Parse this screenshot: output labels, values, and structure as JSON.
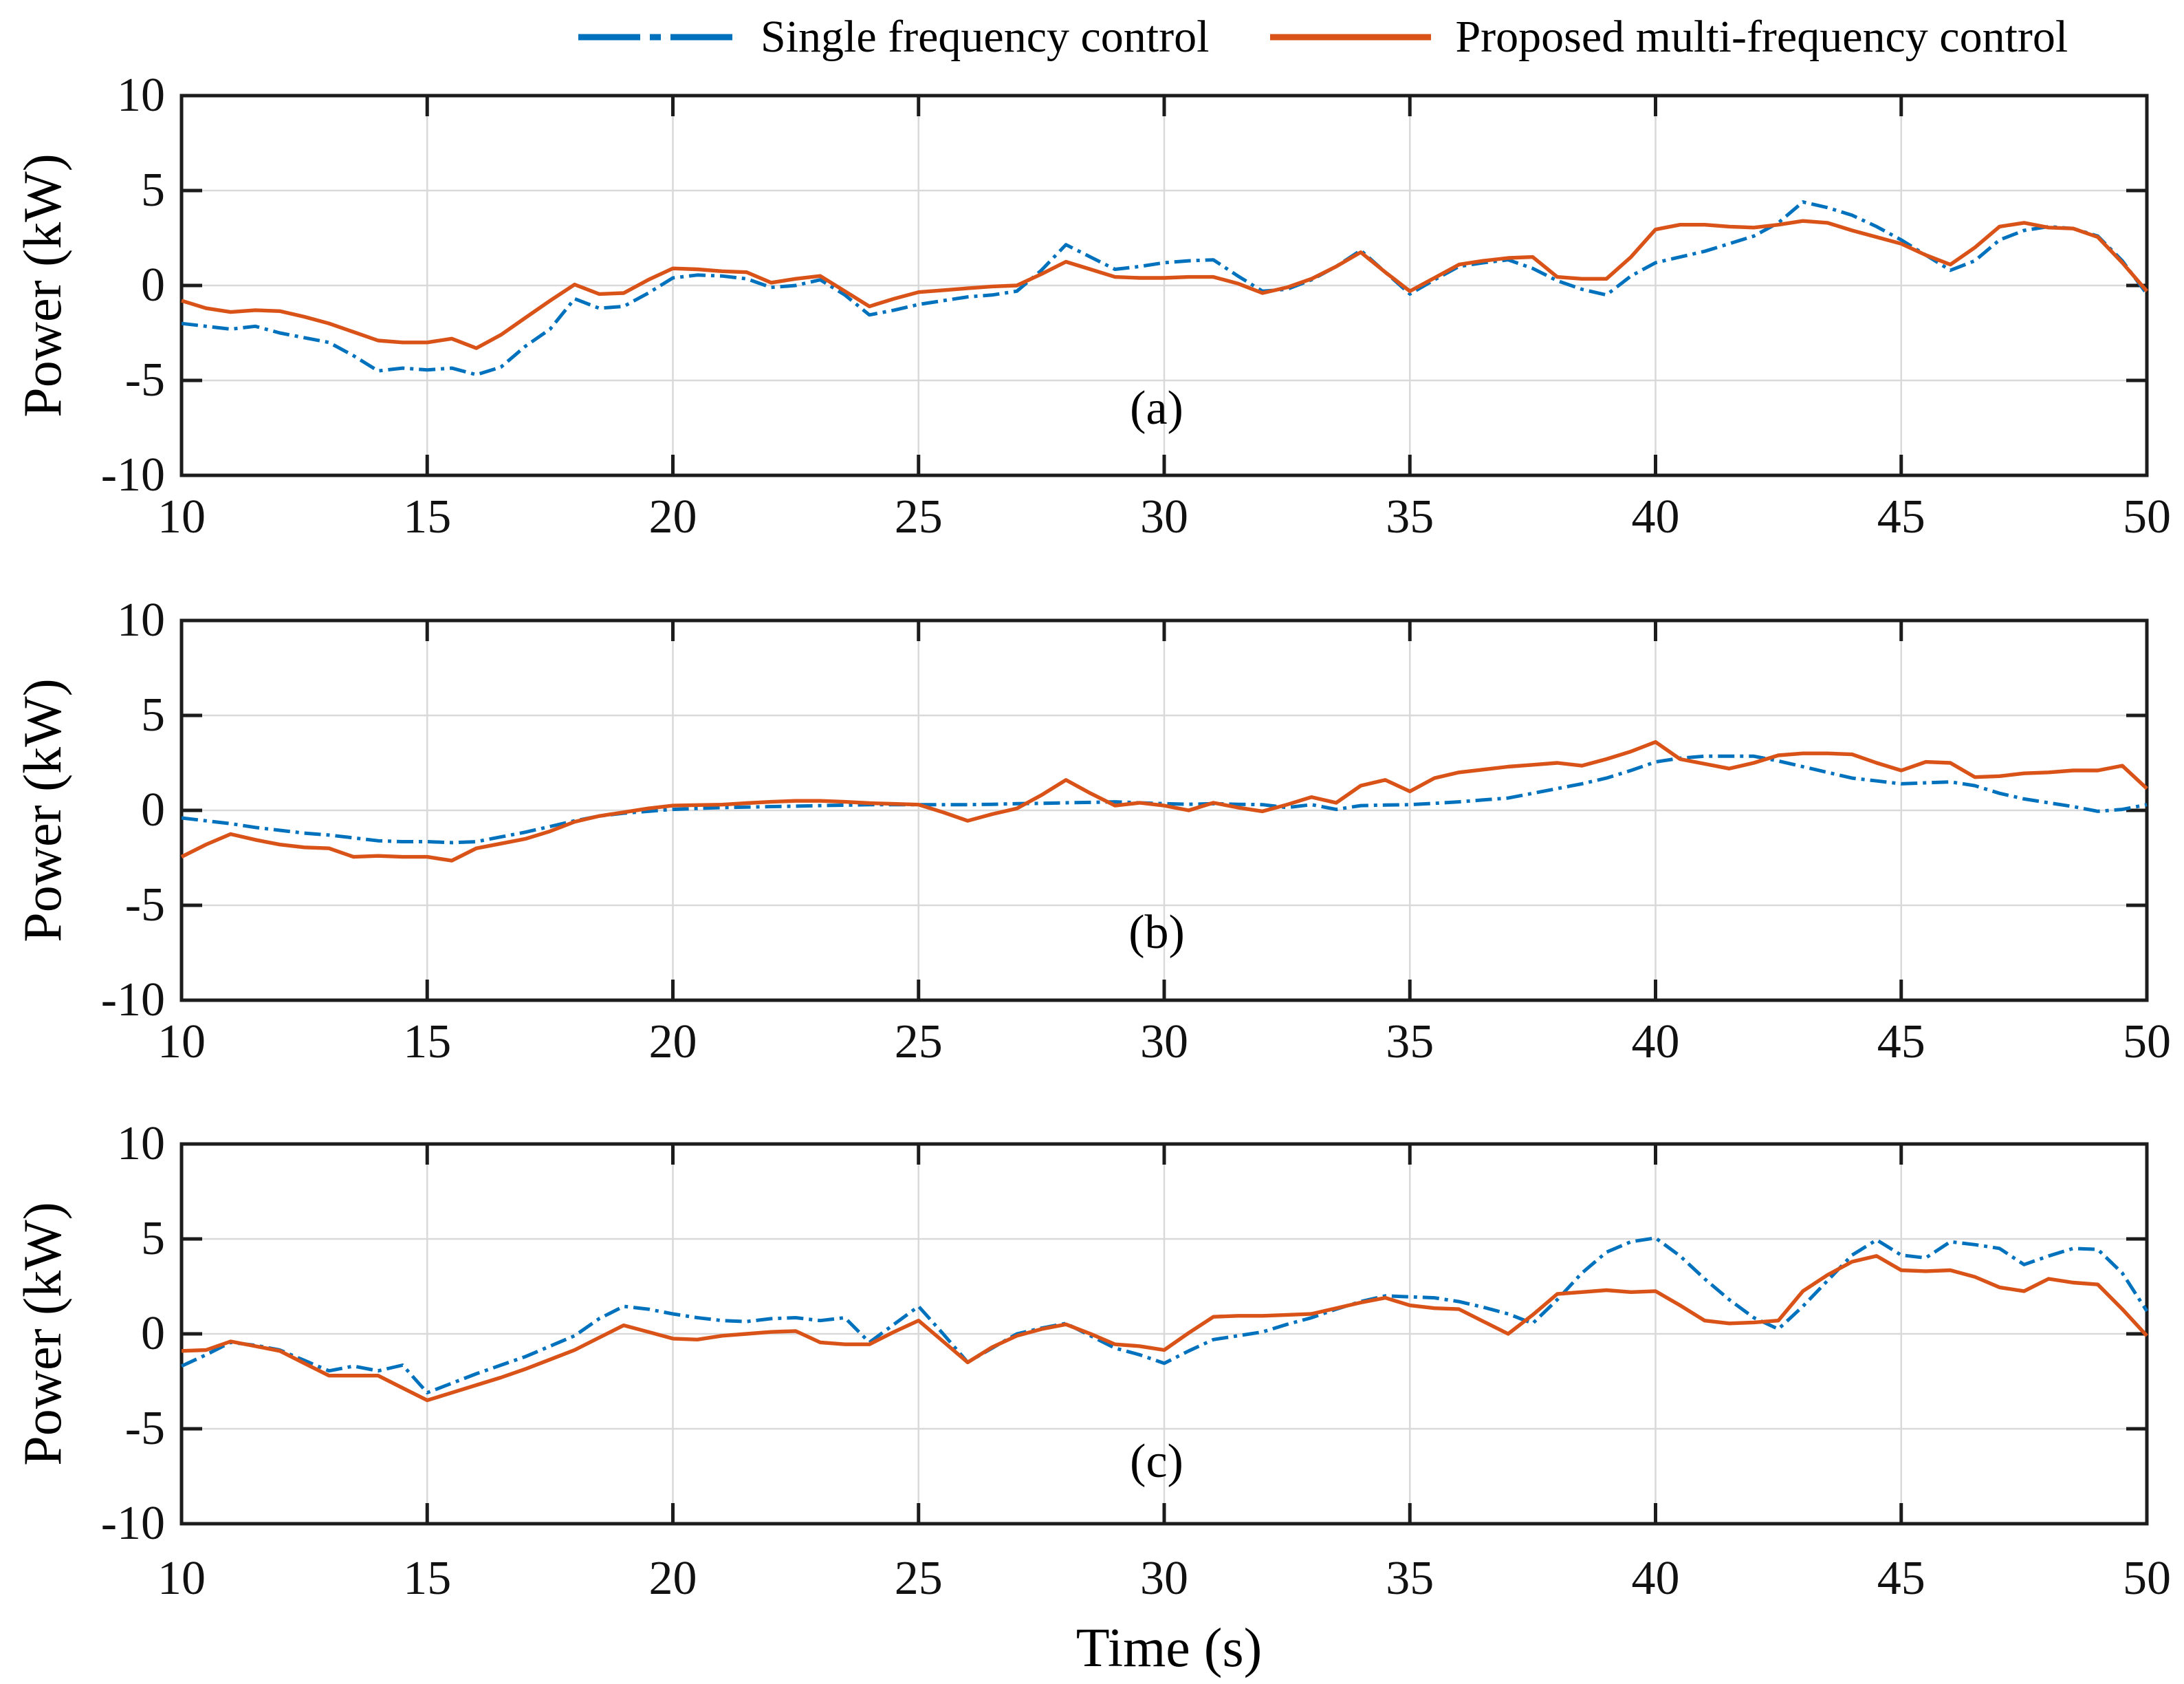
{
  "figure": {
    "background": "#ffffff"
  },
  "legend": {
    "position": "top",
    "items": [
      {
        "label": "Single frequency control",
        "color": "#0072BD",
        "line_style": "dash-dot"
      },
      {
        "label": "Proposed multi-frequency control",
        "color": "#D95319",
        "line_style": "solid"
      }
    ]
  },
  "axes": {
    "x_label": "Time (s)",
    "y_label": "Power (kW)",
    "x_range": [
      10,
      50
    ],
    "y_range": [
      -10,
      10
    ],
    "x_ticks": [
      10,
      15,
      20,
      25,
      30,
      35,
      40,
      45,
      50
    ],
    "y_ticks": [
      10,
      5,
      0,
      -5,
      -10
    ],
    "y_tick_labels": [
      "10",
      "5",
      "0",
      "-5",
      "-10"
    ],
    "grid": true,
    "grid_color": "#d9d9d9",
    "frame_color": "#1c1c1c"
  },
  "chart_data": {
    "type": "line",
    "title": "",
    "xlabel": "Time (s)",
    "ylabel": "Power (kW)",
    "xlim": [
      10,
      50
    ],
    "ylim": [
      -10,
      10
    ],
    "legend_position": "top",
    "grid": true,
    "x": [
      10,
      10.5,
      11,
      11.5,
      12,
      12.5,
      13,
      13.5,
      14,
      14.5,
      15,
      15.5,
      16,
      16.5,
      17,
      17.5,
      18,
      18.5,
      19,
      19.5,
      20,
      20.5,
      21,
      21.5,
      22,
      22.5,
      23,
      23.5,
      24,
      24.5,
      25,
      25.5,
      26,
      26.5,
      27,
      27.5,
      28,
      28.5,
      29,
      29.5,
      30,
      30.5,
      31,
      31.5,
      32,
      32.5,
      33,
      33.5,
      34,
      34.5,
      35,
      35.5,
      36,
      36.5,
      37,
      37.5,
      38,
      38.5,
      39,
      39.5,
      40,
      40.5,
      41,
      41.5,
      42,
      42.5,
      43,
      43.5,
      44,
      44.5,
      45,
      45.5,
      46,
      46.5,
      47,
      47.5,
      48,
      48.5,
      49,
      49.5,
      50
    ],
    "subplots": [
      {
        "label": "(a)",
        "series": [
          {
            "name": "Single frequency control",
            "color": "#0072BD",
            "style": "dash-dot",
            "values": [
              -2.0,
              -2.15,
              -2.3,
              -2.15,
              -2.5,
              -2.75,
              -3.0,
              -3.7,
              -4.5,
              -4.35,
              -4.45,
              -4.35,
              -4.7,
              -4.3,
              -3.2,
              -2.3,
              -0.7,
              -1.2,
              -1.1,
              -0.4,
              0.4,
              0.55,
              0.5,
              0.35,
              -0.1,
              0.0,
              0.3,
              -0.5,
              -1.55,
              -1.3,
              -1.0,
              -0.8,
              -0.6,
              -0.5,
              -0.3,
              0.8,
              2.15,
              1.5,
              0.85,
              1.0,
              1.2,
              1.3,
              1.35,
              0.5,
              -0.3,
              -0.2,
              0.3,
              1.0,
              1.85,
              0.7,
              -0.45,
              0.3,
              1.0,
              1.2,
              1.35,
              0.9,
              0.25,
              -0.2,
              -0.5,
              0.5,
              1.2,
              1.5,
              1.8,
              2.2,
              2.6,
              3.3,
              4.4,
              4.1,
              3.7,
              3.1,
              2.4,
              1.6,
              0.8,
              1.3,
              2.4,
              2.9,
              3.1,
              3.0,
              2.6,
              1.3,
              -0.45
            ]
          },
          {
            "name": "Proposed multi-frequency control",
            "color": "#D95319",
            "style": "solid",
            "values": [
              -0.8,
              -1.2,
              -1.4,
              -1.3,
              -1.35,
              -1.65,
              -2.0,
              -2.45,
              -2.9,
              -3.0,
              -3.0,
              -2.8,
              -3.3,
              -2.6,
              -1.7,
              -0.8,
              0.05,
              -0.45,
              -0.4,
              0.3,
              0.9,
              0.85,
              0.75,
              0.7,
              0.15,
              0.35,
              0.5,
              -0.3,
              -1.1,
              -0.7,
              -0.35,
              -0.25,
              -0.15,
              -0.05,
              0.0,
              0.6,
              1.25,
              0.85,
              0.45,
              0.4,
              0.4,
              0.45,
              0.45,
              0.1,
              -0.4,
              -0.1,
              0.35,
              1.0,
              1.75,
              0.7,
              -0.3,
              0.4,
              1.1,
              1.3,
              1.45,
              1.5,
              0.45,
              0.35,
              0.35,
              1.5,
              2.95,
              3.2,
              3.2,
              3.1,
              3.05,
              3.2,
              3.4,
              3.3,
              2.9,
              2.55,
              2.2,
              1.6,
              1.1,
              2.0,
              3.1,
              3.3,
              3.05,
              3.0,
              2.55,
              1.2,
              -0.3
            ]
          }
        ]
      },
      {
        "label": "(b)",
        "series": [
          {
            "name": "Single frequency control",
            "color": "#0072BD",
            "style": "dash-dot",
            "values": [
              -0.4,
              -0.55,
              -0.7,
              -0.9,
              -1.05,
              -1.2,
              -1.3,
              -1.45,
              -1.6,
              -1.65,
              -1.65,
              -1.7,
              -1.65,
              -1.4,
              -1.15,
              -0.85,
              -0.55,
              -0.3,
              -0.15,
              -0.05,
              0.05,
              0.1,
              0.15,
              0.17,
              0.2,
              0.22,
              0.25,
              0.27,
              0.3,
              0.3,
              0.3,
              0.3,
              0.3,
              0.32,
              0.35,
              0.37,
              0.4,
              0.42,
              0.45,
              0.4,
              0.35,
              0.32,
              0.35,
              0.32,
              0.3,
              0.15,
              0.3,
              0.05,
              0.25,
              0.28,
              0.3,
              0.37,
              0.45,
              0.55,
              0.65,
              0.9,
              1.15,
              1.4,
              1.7,
              2.1,
              2.55,
              2.75,
              2.85,
              2.85,
              2.85,
              2.6,
              2.3,
              2.0,
              1.7,
              1.55,
              1.4,
              1.45,
              1.5,
              1.3,
              0.9,
              0.6,
              0.4,
              0.2,
              -0.05,
              0.05,
              0.3
            ]
          },
          {
            "name": "Proposed multi-frequency control",
            "color": "#D95319",
            "style": "solid",
            "values": [
              -2.45,
              -1.8,
              -1.25,
              -1.55,
              -1.8,
              -1.95,
              -2.0,
              -2.45,
              -2.4,
              -2.45,
              -2.45,
              -2.65,
              -2.0,
              -1.75,
              -1.5,
              -1.1,
              -0.6,
              -0.3,
              -0.1,
              0.1,
              0.25,
              0.28,
              0.3,
              0.38,
              0.45,
              0.5,
              0.5,
              0.45,
              0.38,
              0.34,
              0.3,
              -0.1,
              -0.55,
              -0.2,
              0.1,
              0.8,
              1.6,
              0.9,
              0.25,
              0.4,
              0.25,
              0.0,
              0.4,
              0.15,
              -0.05,
              0.3,
              0.7,
              0.4,
              1.3,
              1.6,
              1.0,
              1.7,
              2.0,
              2.15,
              2.3,
              2.4,
              2.5,
              2.35,
              2.7,
              3.1,
              3.6,
              2.7,
              2.45,
              2.2,
              2.5,
              2.9,
              3.0,
              3.0,
              2.95,
              2.5,
              2.1,
              2.55,
              2.5,
              1.75,
              1.8,
              1.95,
              2.0,
              2.1,
              2.1,
              2.35,
              1.15
            ]
          }
        ]
      },
      {
        "label": "(c)",
        "series": [
          {
            "name": "Single frequency control",
            "color": "#0072BD",
            "style": "dash-dot",
            "values": [
              -1.7,
              -1.1,
              -0.45,
              -0.6,
              -0.85,
              -1.4,
              -1.95,
              -1.7,
              -1.95,
              -1.65,
              -3.1,
              -2.6,
              -2.1,
              -1.65,
              -1.2,
              -0.65,
              -0.1,
              0.8,
              1.45,
              1.3,
              1.05,
              0.85,
              0.7,
              0.65,
              0.8,
              0.85,
              0.7,
              0.85,
              -0.45,
              0.5,
              1.45,
              0.0,
              -1.5,
              -0.75,
              0.0,
              0.3,
              0.55,
              -0.1,
              -0.75,
              -1.1,
              -1.55,
              -0.9,
              -0.3,
              -0.1,
              0.1,
              0.5,
              0.85,
              1.3,
              1.7,
              2.0,
              1.95,
              1.9,
              1.7,
              1.4,
              1.05,
              0.55,
              1.8,
              3.2,
              4.3,
              4.85,
              5.05,
              4.1,
              2.9,
              1.8,
              0.85,
              0.25,
              1.45,
              2.8,
              4.15,
              4.95,
              4.15,
              4.0,
              4.85,
              4.7,
              4.5,
              3.65,
              4.1,
              4.5,
              4.45,
              3.2,
              1.2
            ]
          },
          {
            "name": "Proposed multi-frequency control",
            "color": "#D95319",
            "style": "solid",
            "values": [
              -0.9,
              -0.85,
              -0.4,
              -0.65,
              -0.9,
              -1.55,
              -2.2,
              -2.2,
              -2.2,
              -2.85,
              -3.5,
              -3.1,
              -2.7,
              -2.3,
              -1.85,
              -1.35,
              -0.85,
              -0.2,
              0.45,
              0.1,
              -0.25,
              -0.3,
              -0.1,
              0.0,
              0.1,
              0.15,
              -0.45,
              -0.55,
              -0.55,
              0.1,
              0.7,
              -0.4,
              -1.5,
              -0.7,
              -0.1,
              0.25,
              0.5,
              0.0,
              -0.55,
              -0.65,
              -0.85,
              0.05,
              0.9,
              0.95,
              0.95,
              1.0,
              1.05,
              1.35,
              1.65,
              1.9,
              1.5,
              1.35,
              1.3,
              0.65,
              0.0,
              1.0,
              2.1,
              2.2,
              2.3,
              2.2,
              2.25,
              1.5,
              0.7,
              0.55,
              0.6,
              0.7,
              2.25,
              3.1,
              3.8,
              4.1,
              3.35,
              3.3,
              3.35,
              3.0,
              2.45,
              2.25,
              2.9,
              2.7,
              2.6,
              1.3,
              -0.1
            ]
          }
        ]
      }
    ]
  }
}
